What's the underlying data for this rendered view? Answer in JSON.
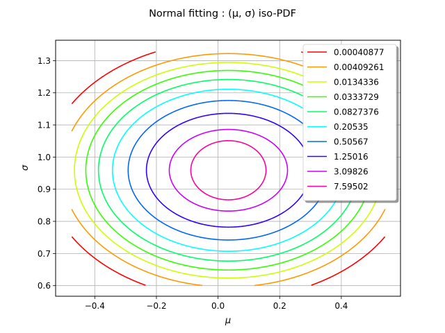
{
  "chart_data": {
    "type": "line",
    "title": "Normal fitting : (μ, σ) iso-PDF",
    "xlabel": "μ",
    "ylabel": "σ",
    "xlim": [
      -0.527,
      0.592
    ],
    "ylim": [
      0.567,
      1.3635
    ],
    "xticks": [
      "−0.4",
      "−0.2",
      "0.0",
      "0.2",
      "0.4"
    ],
    "xtick_values": [
      -0.4,
      -0.2,
      0.0,
      0.2,
      0.4
    ],
    "yticks": [
      "0.6",
      "0.7",
      "0.8",
      "0.9",
      "1.0",
      "1.1",
      "1.2",
      "1.3"
    ],
    "ytick_values": [
      0.6,
      0.7,
      0.8,
      0.9,
      1.0,
      1.1,
      1.2,
      1.3
    ],
    "grid": true,
    "legend_position": "top-right",
    "contour_center": {
      "mu": 0.0336,
      "sigma": 0.959
    },
    "series": [
      {
        "name": "0.00040877",
        "color": "#ff0000",
        "a": 0.5925,
        "b": 0.4015
      },
      {
        "name": "0.00409261",
        "color": "#ff9900",
        "a": 0.5393,
        "b": 0.363
      },
      {
        "name": "0.0134336",
        "color": "#ccff00",
        "a": 0.4995,
        "b": 0.3355
      },
      {
        "name": "0.0333729",
        "color": "#33ff00",
        "a": 0.4626,
        "b": 0.3105
      },
      {
        "name": "0.0827376",
        "color": "#00ff66",
        "a": 0.4216,
        "b": 0.2825
      },
      {
        "name": "0.20535",
        "color": "#00ffff",
        "a": 0.3762,
        "b": 0.252
      },
      {
        "name": "0.50567",
        "color": "#0066ff",
        "a": 0.3253,
        "b": 0.217
      },
      {
        "name": "1.25016",
        "color": "#3300ff",
        "a": 0.266,
        "b": 0.177
      },
      {
        "name": "3.09826",
        "color": "#cc00ff",
        "a": 0.1918,
        "b": 0.127
      },
      {
        "name": "7.59502",
        "color": "#ff0099",
        "a": 0.122,
        "b": 0.092
      }
    ],
    "clip": {
      "mu_min": -0.475,
      "mu_max": 0.543,
      "sigma_min": 0.6,
      "sigma_max": 1.328
    }
  }
}
